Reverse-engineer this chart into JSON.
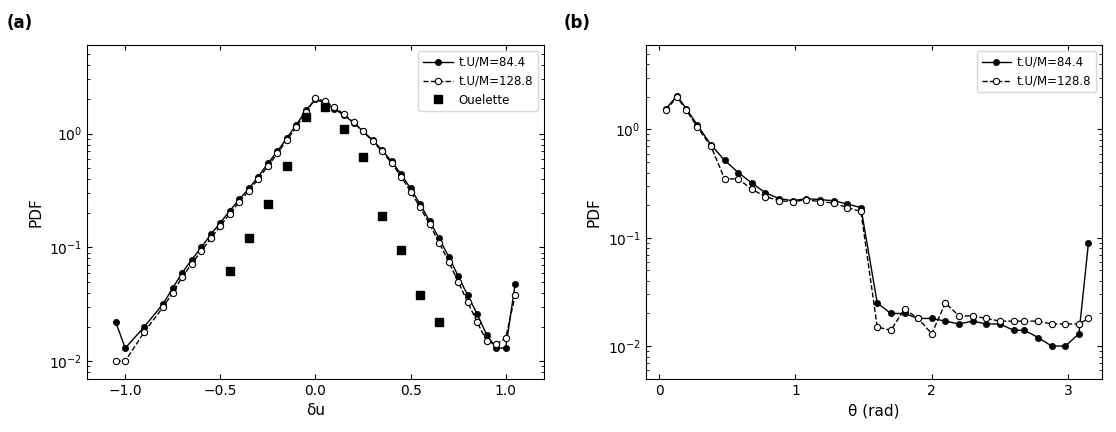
{
  "panel_a": {
    "label": "(a)",
    "xlabel": "δu",
    "ylabel": "PDF",
    "xlim": [
      -1.2,
      1.2
    ],
    "ylim_log": [
      0.007,
      6.0
    ],
    "series1_x": [
      -1.05,
      -1.0,
      -0.9,
      -0.8,
      -0.75,
      -0.7,
      -0.65,
      -0.6,
      -0.55,
      -0.5,
      -0.45,
      -0.4,
      -0.35,
      -0.3,
      -0.25,
      -0.2,
      -0.15,
      -0.1,
      -0.05,
      0.0,
      0.05,
      0.1,
      0.15,
      0.2,
      0.25,
      0.3,
      0.35,
      0.4,
      0.45,
      0.5,
      0.55,
      0.6,
      0.65,
      0.7,
      0.75,
      0.8,
      0.85,
      0.9,
      0.95,
      1.0,
      1.05
    ],
    "series1_y": [
      0.022,
      0.013,
      0.02,
      0.032,
      0.044,
      0.06,
      0.078,
      0.1,
      0.13,
      0.165,
      0.21,
      0.265,
      0.33,
      0.42,
      0.55,
      0.7,
      0.92,
      1.2,
      1.6,
      2.0,
      1.85,
      1.65,
      1.45,
      1.25,
      1.05,
      0.88,
      0.72,
      0.57,
      0.44,
      0.33,
      0.24,
      0.17,
      0.12,
      0.083,
      0.056,
      0.038,
      0.026,
      0.017,
      0.013,
      0.013,
      0.048
    ],
    "series2_x": [
      -1.05,
      -1.0,
      -0.9,
      -0.8,
      -0.75,
      -0.7,
      -0.65,
      -0.6,
      -0.55,
      -0.5,
      -0.45,
      -0.4,
      -0.35,
      -0.3,
      -0.25,
      -0.2,
      -0.15,
      -0.1,
      -0.05,
      0.0,
      0.05,
      0.1,
      0.15,
      0.2,
      0.25,
      0.3,
      0.35,
      0.4,
      0.45,
      0.5,
      0.55,
      0.6,
      0.65,
      0.7,
      0.75,
      0.8,
      0.85,
      0.9,
      0.95,
      1.0,
      1.05
    ],
    "series2_y": [
      0.01,
      0.01,
      0.018,
      0.03,
      0.04,
      0.055,
      0.072,
      0.093,
      0.12,
      0.155,
      0.198,
      0.252,
      0.315,
      0.4,
      0.52,
      0.67,
      0.88,
      1.15,
      1.55,
      2.05,
      1.92,
      1.7,
      1.48,
      1.26,
      1.05,
      0.86,
      0.7,
      0.55,
      0.42,
      0.31,
      0.225,
      0.16,
      0.11,
      0.075,
      0.05,
      0.033,
      0.022,
      0.015,
      0.014,
      0.016,
      0.038
    ],
    "ouelette_x": [
      -0.45,
      -0.35,
      -0.25,
      -0.15,
      -0.05,
      0.05,
      0.15,
      0.25,
      0.35,
      0.45,
      0.55,
      0.65
    ],
    "ouelette_y": [
      0.062,
      0.12,
      0.24,
      0.52,
      1.4,
      1.7,
      1.1,
      0.62,
      0.19,
      0.095,
      0.038,
      0.022
    ],
    "legend1": "t.U/M=84.4",
    "legend2": "t.U/M=128.8",
    "legend3": "Ouelette"
  },
  "panel_b": {
    "label": "(b)",
    "xlabel": "θ (rad)",
    "ylabel": "PDF",
    "xlim": [
      -0.1,
      3.25
    ],
    "ylim_log": [
      0.005,
      6.0
    ],
    "series1_x": [
      0.05,
      0.13,
      0.2,
      0.28,
      0.38,
      0.48,
      0.58,
      0.68,
      0.78,
      0.88,
      0.98,
      1.08,
      1.18,
      1.28,
      1.38,
      1.48,
      1.6,
      1.7,
      1.8,
      1.9,
      2.0,
      2.1,
      2.2,
      2.3,
      2.4,
      2.5,
      2.6,
      2.68,
      2.78,
      2.88,
      2.98,
      3.08,
      3.15
    ],
    "series1_y": [
      1.55,
      2.05,
      1.55,
      1.1,
      0.72,
      0.52,
      0.4,
      0.32,
      0.26,
      0.23,
      0.22,
      0.23,
      0.225,
      0.22,
      0.205,
      0.19,
      0.025,
      0.02,
      0.02,
      0.018,
      0.018,
      0.017,
      0.016,
      0.017,
      0.016,
      0.016,
      0.014,
      0.014,
      0.012,
      0.01,
      0.01,
      0.013,
      0.09
    ],
    "series2_x": [
      0.05,
      0.13,
      0.2,
      0.28,
      0.38,
      0.48,
      0.58,
      0.68,
      0.78,
      0.88,
      0.98,
      1.08,
      1.18,
      1.28,
      1.38,
      1.48,
      1.6,
      1.7,
      1.8,
      1.9,
      2.0,
      2.1,
      2.2,
      2.3,
      2.4,
      2.5,
      2.6,
      2.68,
      2.78,
      2.88,
      2.98,
      3.08,
      3.15
    ],
    "series2_y": [
      1.5,
      2.0,
      1.5,
      1.05,
      0.7,
      0.35,
      0.35,
      0.28,
      0.24,
      0.22,
      0.215,
      0.225,
      0.215,
      0.21,
      0.19,
      0.175,
      0.015,
      0.014,
      0.022,
      0.018,
      0.013,
      0.025,
      0.019,
      0.019,
      0.018,
      0.017,
      0.017,
      0.017,
      0.017,
      0.016,
      0.016,
      0.016,
      0.018
    ],
    "legend1": "t.U/M=84.4",
    "legend2": "t.U/M=128.8"
  }
}
